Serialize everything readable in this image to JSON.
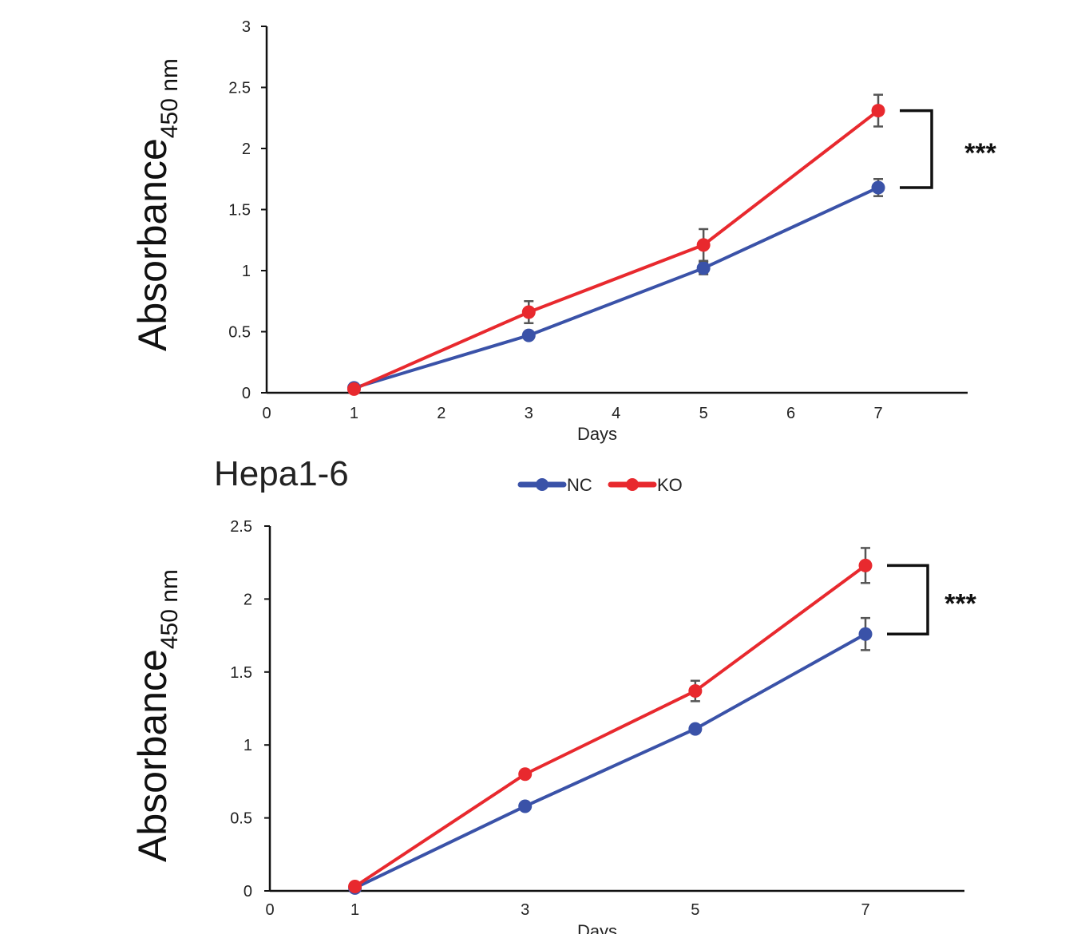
{
  "legend": {
    "entries": [
      {
        "name": "NC",
        "color": "#3a52a8"
      },
      {
        "name": "KO",
        "color": "#e8292e"
      }
    ]
  },
  "colors": {
    "NC": "#3a52a8",
    "KO": "#e8292e",
    "error_bar": "#555555",
    "axis": "#111111"
  },
  "chart_data": [
    {
      "type": "line",
      "title": "",
      "xlabel": "Days",
      "ylabel": "Absorbance",
      "ylabel_subscript": "450 nm",
      "xlim": [
        0,
        8
      ],
      "ylim": [
        0,
        3
      ],
      "x_ticks": [
        "0",
        "1",
        "2",
        "3",
        "4",
        "5",
        "6",
        "7"
      ],
      "y_ticks": [
        "0",
        "0.5",
        "1",
        "1.5",
        "2",
        "2.5",
        "3"
      ],
      "x": [
        1,
        3,
        5,
        7
      ],
      "series": [
        {
          "name": "NC",
          "values": [
            0.04,
            0.47,
            1.02,
            1.68
          ],
          "errors": [
            0.01,
            0.02,
            0.05,
            0.07
          ]
        },
        {
          "name": "KO",
          "values": [
            0.03,
            0.66,
            1.21,
            2.31
          ],
          "errors": [
            0.01,
            0.09,
            0.13,
            0.13
          ]
        }
      ],
      "significance": "***"
    },
    {
      "type": "line",
      "title": "Hepa1-6",
      "xlabel": "Days",
      "ylabel": "Absorbance",
      "ylabel_subscript": "450 nm",
      "xlim": [
        0,
        8
      ],
      "ylim": [
        0,
        2.5
      ],
      "x_ticks": [
        "0",
        "1",
        "3",
        "5",
        "7"
      ],
      "y_ticks": [
        "0",
        "0.5",
        "1",
        "1.5",
        "2",
        "2.5"
      ],
      "x": [
        1,
        3,
        5,
        7
      ],
      "series": [
        {
          "name": "NC",
          "values": [
            0.02,
            0.58,
            1.11,
            1.76
          ],
          "errors": [
            0.01,
            0.01,
            0.02,
            0.11
          ]
        },
        {
          "name": "KO",
          "values": [
            0.03,
            0.8,
            1.37,
            2.23
          ],
          "errors": [
            0.01,
            0.01,
            0.07,
            0.12
          ]
        }
      ],
      "significance": "***"
    }
  ]
}
